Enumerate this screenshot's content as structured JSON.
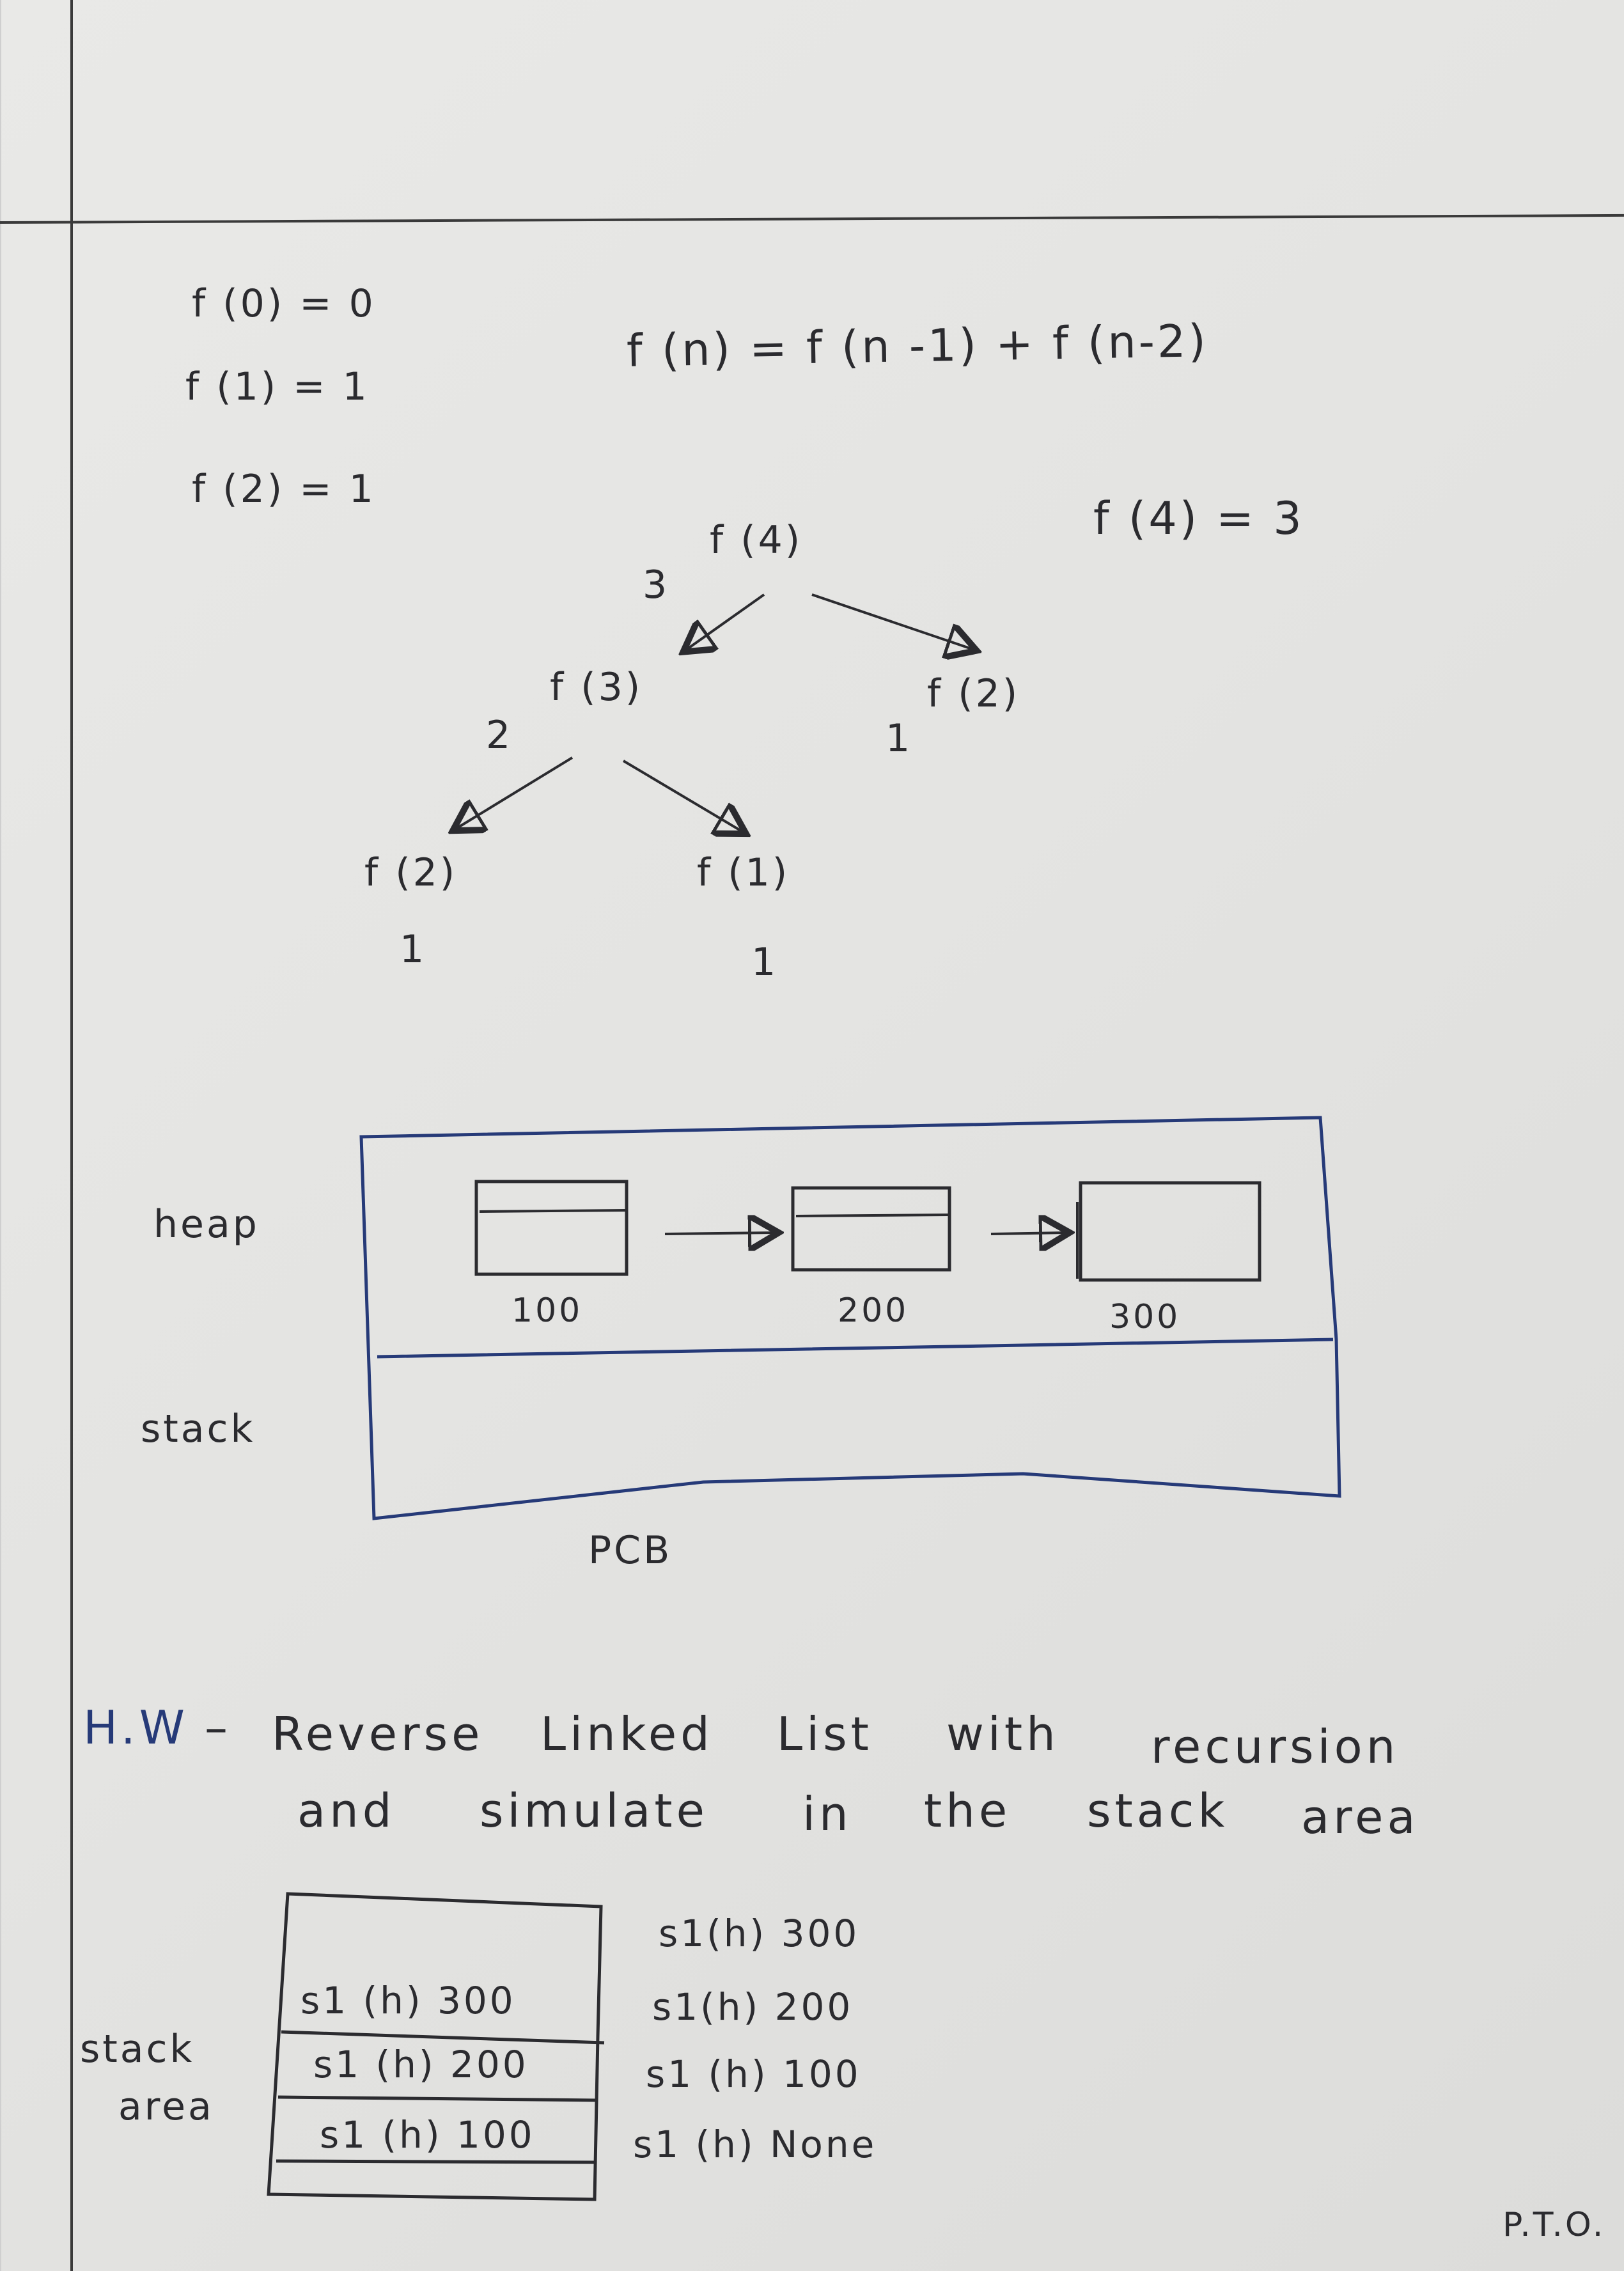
{
  "base_cases": [
    "f (0) = 0",
    "f (1) = 1",
    "f (2) = 1"
  ],
  "recurrence": "f (n) = f (n -1) + f (n-2)",
  "result": "f (4) = 3",
  "tree": {
    "root": "f (4)",
    "root_value": "3",
    "left": "f (3)",
    "left_value": "2",
    "right": "f (2)",
    "right_value": "1",
    "left_left": "f (2)",
    "left_left_value": "1",
    "left_right": "f (1)",
    "left_right_value": "1"
  },
  "memory": {
    "heap_label": "heap",
    "stack_label": "stack",
    "node_addresses": [
      "100",
      "200",
      "300"
    ],
    "caption": "PCB"
  },
  "homework": {
    "line1": [
      "H.W",
      "–",
      "Reverse",
      "Linked",
      "List",
      "with",
      "recursion"
    ],
    "line2": [
      "and",
      "simulate",
      "in",
      "the",
      "stack",
      "area"
    ]
  },
  "stack_area": {
    "label_line1": "stack",
    "label_line2": "area",
    "frames": [
      "s1 (h) 300",
      "s1 (h) 200",
      "s1 (h) 100"
    ],
    "trace": [
      "s1(h) 300",
      "s1(h) 200",
      "s1 (h) 100",
      "s1 (h) None"
    ]
  },
  "footer": "P.T.O."
}
